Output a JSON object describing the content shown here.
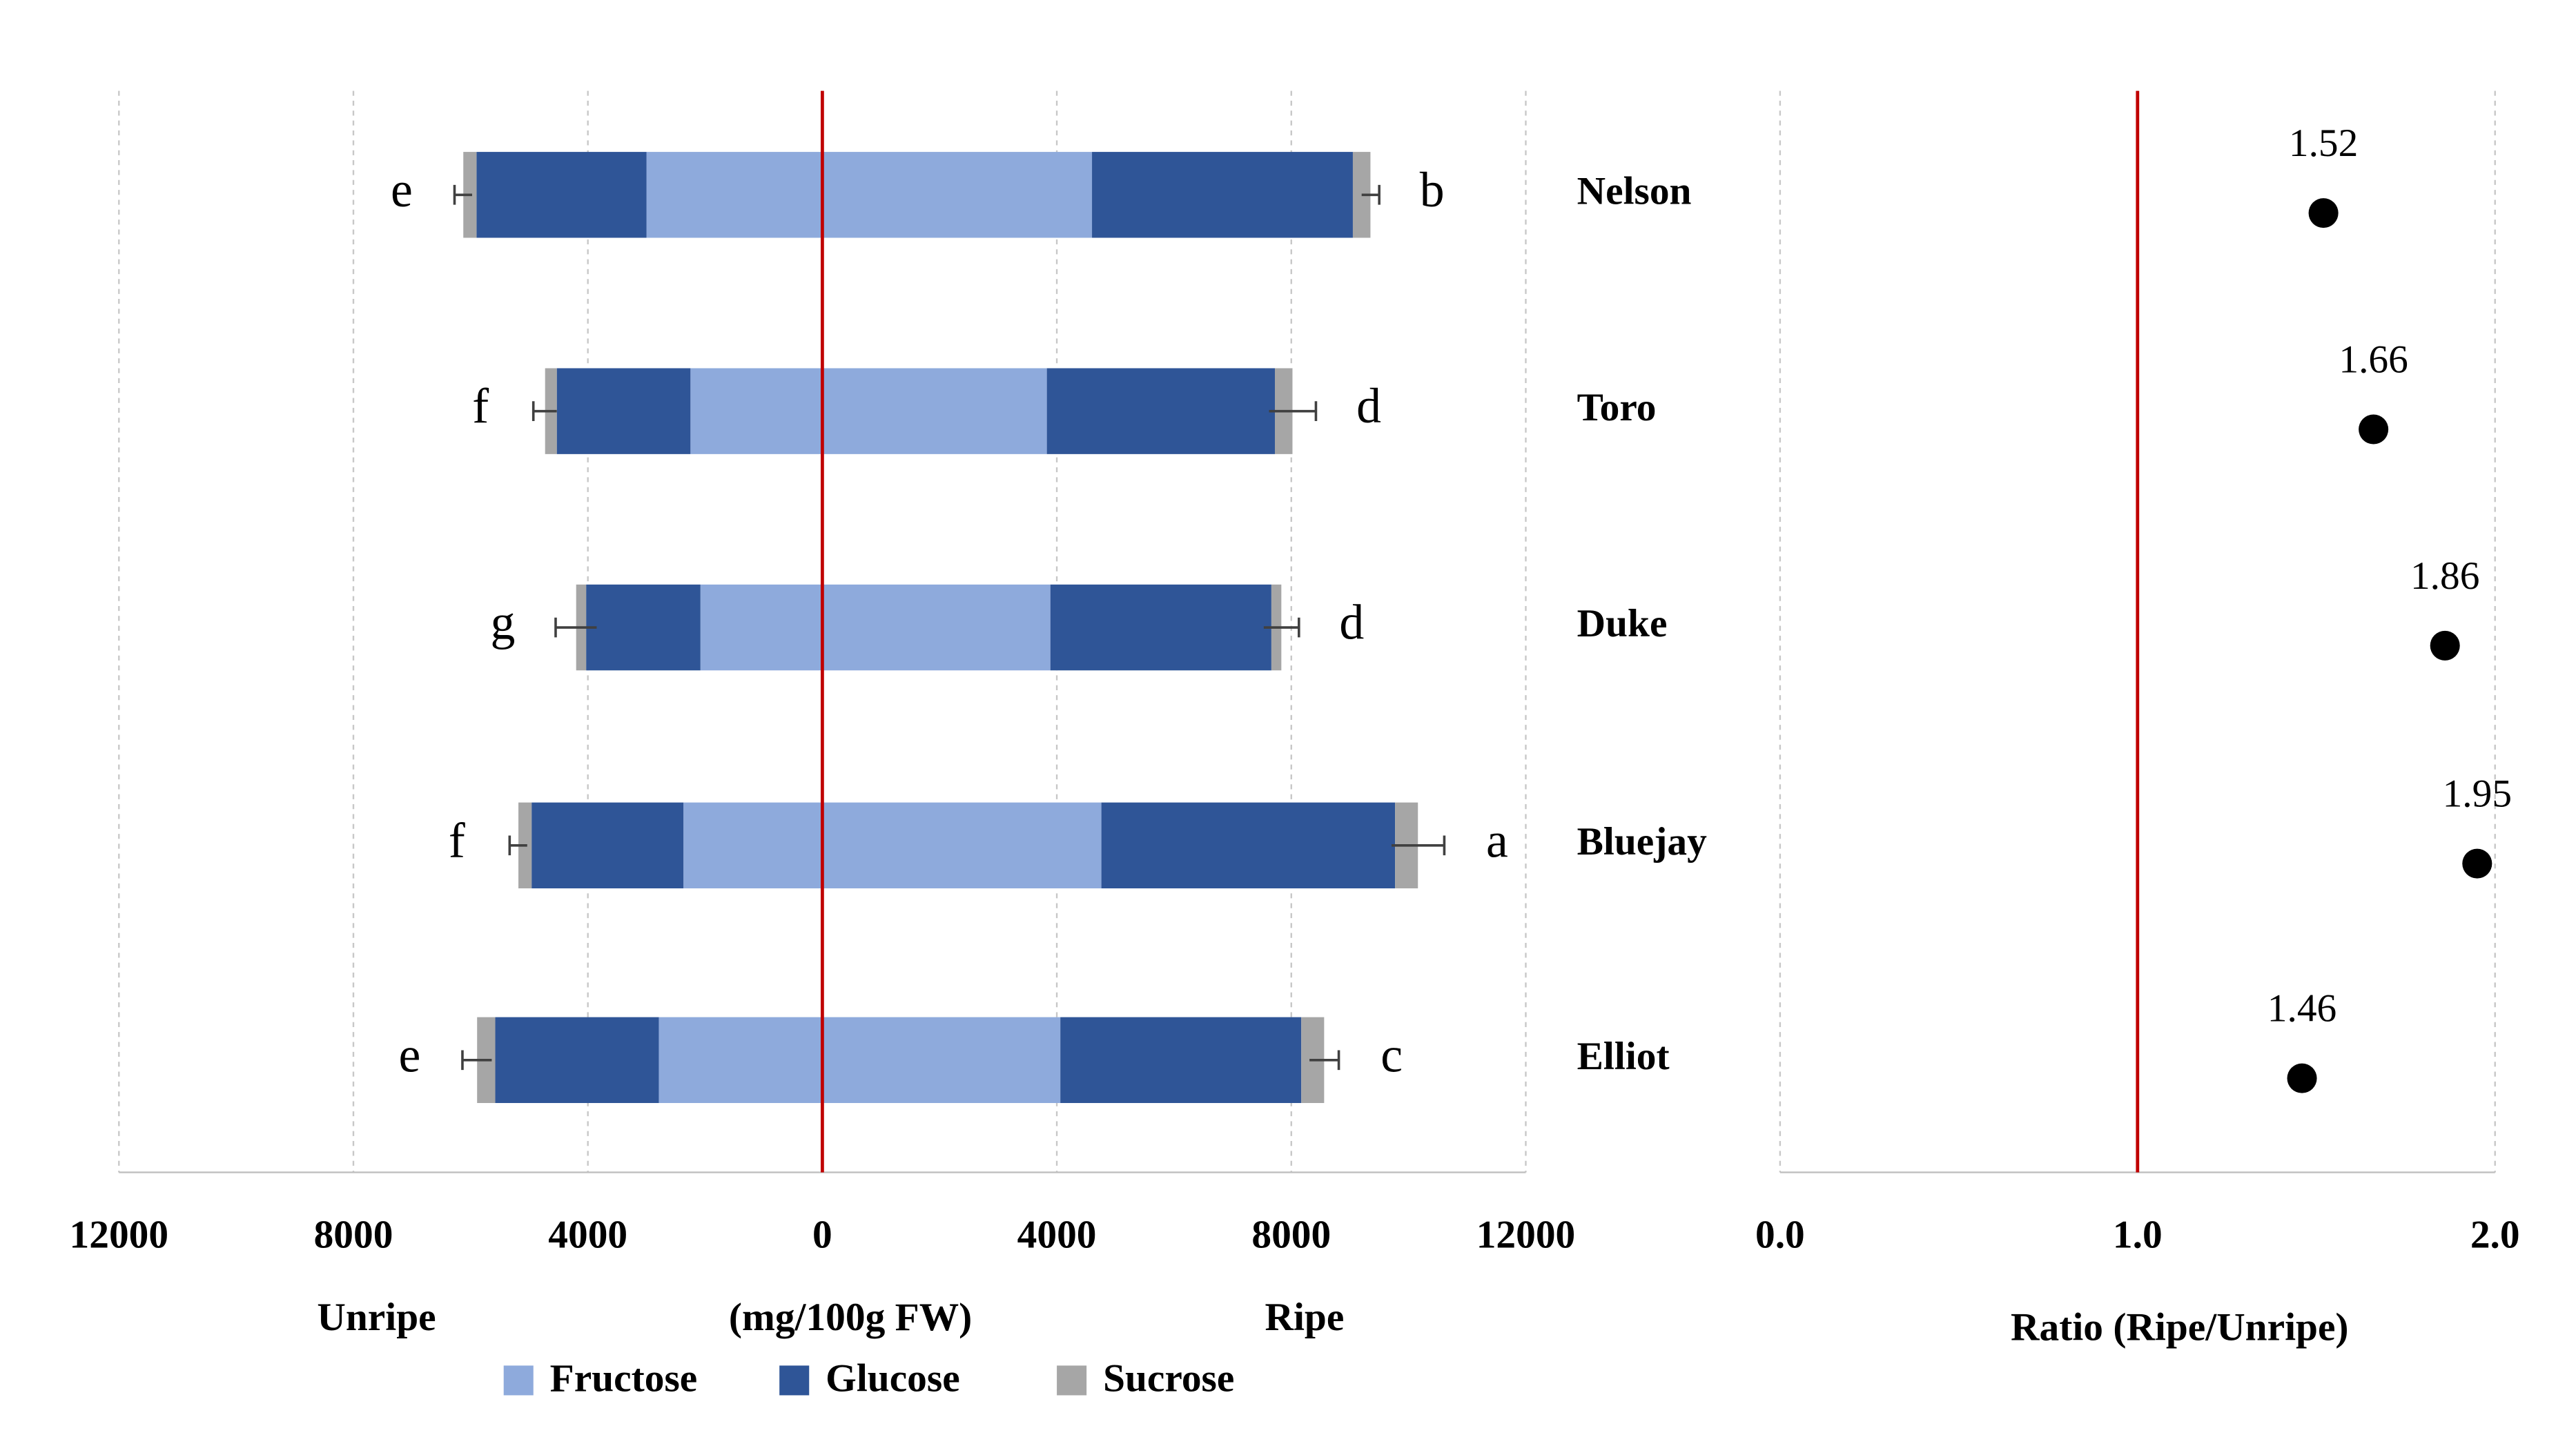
{
  "chart_data": [
    {
      "type": "diverging-bar",
      "categories": [
        "Nelson",
        "Toro",
        "Duke",
        "Bluejay",
        "Elliot"
      ],
      "series": [
        {
          "name": "Fructose",
          "color": "#8eaadc",
          "unripe": [
            3000,
            2250,
            2080,
            2370,
            2790
          ],
          "ripe": [
            4600,
            3830,
            3890,
            4760,
            4060
          ]
        },
        {
          "name": "Glucose",
          "color": "#2f5597",
          "unripe": [
            2900,
            2280,
            1950,
            2590,
            2790
          ],
          "ripe": [
            4450,
            3890,
            3770,
            5010,
            4110
          ]
        },
        {
          "name": "Sucrose",
          "color": "#a6a6a6",
          "unripe": [
            225,
            200,
            170,
            225,
            310
          ],
          "ripe": [
            300,
            300,
            170,
            390,
            390
          ]
        }
      ],
      "error_unripe": [
        150,
        200,
        350,
        150,
        250
      ],
      "error_ripe": [
        150,
        400,
        300,
        450,
        250
      ],
      "letters_unripe": [
        "e",
        "f",
        "g",
        "f",
        "e"
      ],
      "letters_ripe": [
        "b",
        "d",
        "d",
        "a",
        "c"
      ],
      "xlim": [
        -12000,
        12000
      ],
      "xticks": [
        {
          "value": -12000,
          "label": "12000"
        },
        {
          "value": -8000,
          "label": "8000"
        },
        {
          "value": -4000,
          "label": "4000"
        },
        0,
        4000,
        8000,
        12000
      ],
      "left_label": "Unripe",
      "xlabel": "(mg/100g FW)",
      "right_label": "Ripe",
      "reference_line": 0,
      "reference_color": "#c00000",
      "grid": true
    },
    {
      "type": "dot",
      "values": [
        1.52,
        1.66,
        1.86,
        1.95,
        1.46
      ],
      "color": "#000000",
      "xlim": [
        0,
        2
      ],
      "xticks": [
        {
          "value": 0,
          "label": "0.0"
        },
        {
          "value": 1,
          "label": "1.0"
        },
        {
          "value": 2,
          "label": "2.0"
        }
      ],
      "xlabel": "Ratio (Ripe/Unripe)",
      "reference_line": 1,
      "reference_color": "#c00000",
      "grid": true
    }
  ]
}
